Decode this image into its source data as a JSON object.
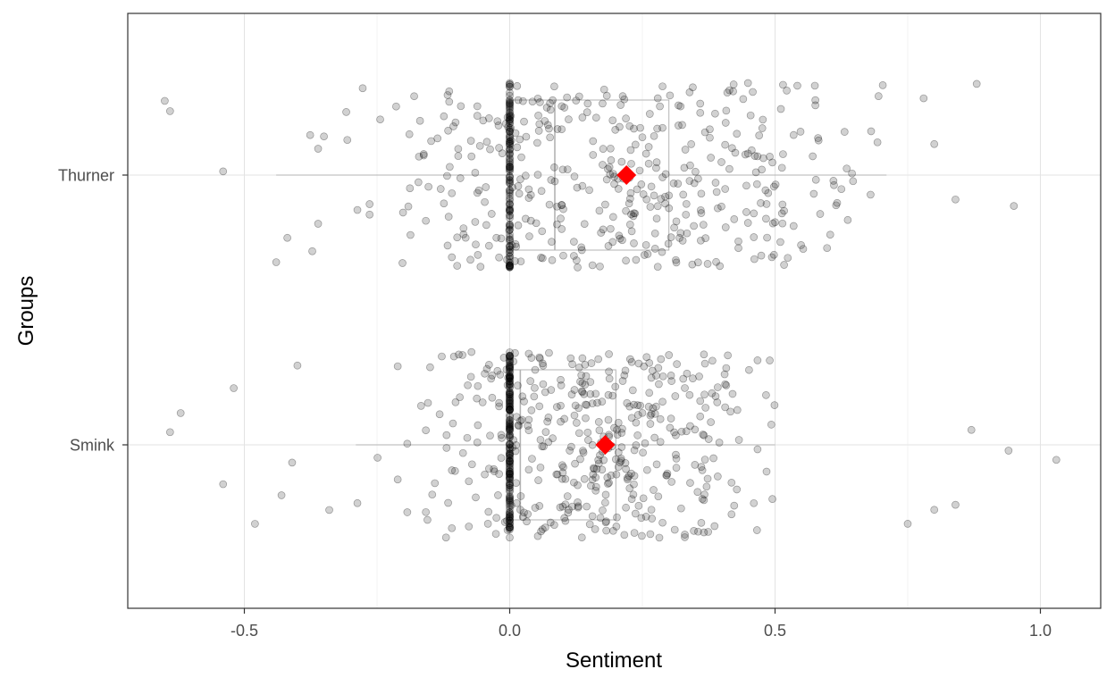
{
  "chart_data": {
    "type": "scatter",
    "subtype": "horizontal boxplot with jittered points and mean markers",
    "xlabel": "Sentiment",
    "ylabel": "Groups",
    "xlim": [
      -0.72,
      1.12
    ],
    "x_ticks": [
      -0.5,
      0.0,
      0.5,
      1.0
    ],
    "x_tick_labels": [
      "-0.5",
      "0.0",
      "0.5",
      "1.0"
    ],
    "categories": [
      "Smink",
      "Thurner"
    ],
    "grid": true,
    "jitter_points": true,
    "point_color": "#000000",
    "point_opacity": 0.18,
    "mean_color": "#ff0000",
    "box_color": "#b3b3b3",
    "groups": [
      {
        "name": "Thurner",
        "whisker_low": -0.44,
        "q1": 0.0,
        "median": 0.085,
        "q3": 0.3,
        "whisker_high": 0.71,
        "mean": 0.22,
        "n_points": 560,
        "zero_share": 0.22,
        "outliers": [
          -0.65,
          -0.64,
          -0.54,
          0.8,
          0.84,
          0.95,
          0.88,
          0.78
        ]
      },
      {
        "name": "Smink",
        "whisker_low": -0.29,
        "q1": 0.0,
        "median": 0.02,
        "q3": 0.2,
        "whisker_high": 0.5,
        "mean": 0.18,
        "n_points": 620,
        "zero_share": 0.28,
        "outliers": [
          -0.64,
          -0.62,
          -0.54,
          -0.52,
          -0.48,
          -0.43,
          -0.41,
          -0.4,
          -0.34,
          0.75,
          0.8,
          0.84,
          0.87,
          0.94,
          1.03
        ]
      }
    ]
  }
}
